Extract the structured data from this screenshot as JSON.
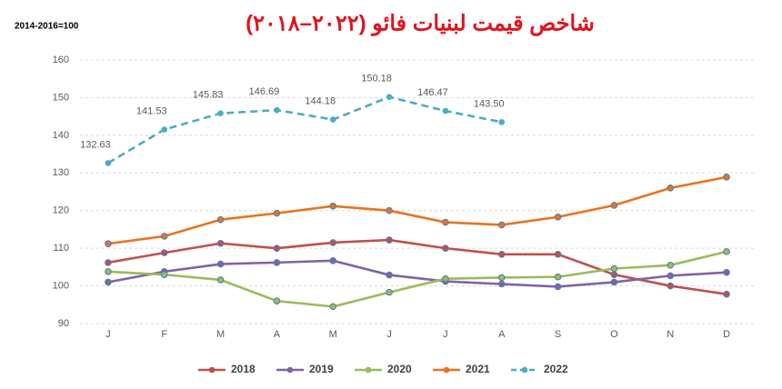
{
  "chart_data": {
    "type": "line",
    "title": "شاخص قیمت لبنیات فائو (۲۰۲۲–۲۰۱۸)",
    "subtitle": "2014-2016=100",
    "categories": [
      "J",
      "F",
      "M",
      "A",
      "M",
      "J",
      "J",
      "A",
      "S",
      "O",
      "N",
      "D"
    ],
    "ylim": [
      90,
      160
    ],
    "yticks": [
      90,
      100,
      110,
      120,
      130,
      140,
      150,
      160
    ],
    "grid": true,
    "legend": "bottom",
    "series": [
      {
        "name": "2018",
        "color": "#c0504d",
        "values": [
          106.2,
          108.8,
          111.3,
          110,
          111.5,
          112.2,
          110,
          108.4,
          108.4,
          103,
          100,
          97.8
        ]
      },
      {
        "name": "2019",
        "color": "#8064a2",
        "values": [
          101,
          103.8,
          105.8,
          106.2,
          106.7,
          102.9,
          101.2,
          100.5,
          99.8,
          101,
          102.7,
          103.6
        ]
      },
      {
        "name": "2020",
        "color": "#9bbb59",
        "values": [
          103.8,
          103,
          101.6,
          96,
          94.5,
          98.3,
          101.9,
          102.2,
          102.4,
          104.6,
          105.5,
          109.1
        ]
      },
      {
        "name": "2021",
        "color": "#e8731f",
        "values": [
          111.2,
          113.2,
          117.6,
          119.3,
          121.2,
          120,
          116.9,
          116.2,
          118.3,
          121.4,
          126,
          128.9
        ]
      },
      {
        "name": "2022",
        "color": "#4bacc6",
        "dashed": true,
        "values": [
          132.63,
          141.53,
          145.83,
          146.69,
          144.18,
          150.18,
          146.47,
          143.5,
          null,
          null,
          null,
          null
        ],
        "value_labels": [
          "132.63",
          "141.53",
          "145.83",
          "146.69",
          "144.18",
          "150.18",
          "146.47",
          "143.50",
          null,
          null,
          null,
          null
        ]
      }
    ]
  }
}
